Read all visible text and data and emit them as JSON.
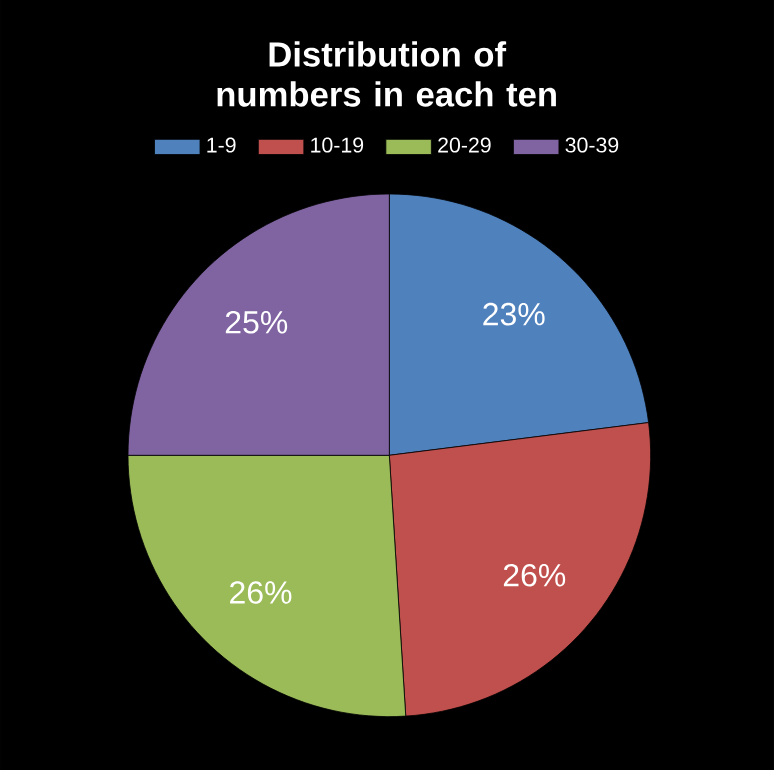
{
  "chart_data": {
    "type": "pie",
    "title": "Distribution of numbers in each ten",
    "categories": [
      "1-9",
      "10-19",
      "20-29",
      "30-39"
    ],
    "values": [
      23,
      26,
      26,
      25
    ],
    "colors": [
      "#4f81bd",
      "#c0504d",
      "#9bbb59",
      "#8064a2"
    ],
    "value_labels": [
      "23%",
      "26%",
      "26%",
      "25%"
    ],
    "legend": "top"
  }
}
